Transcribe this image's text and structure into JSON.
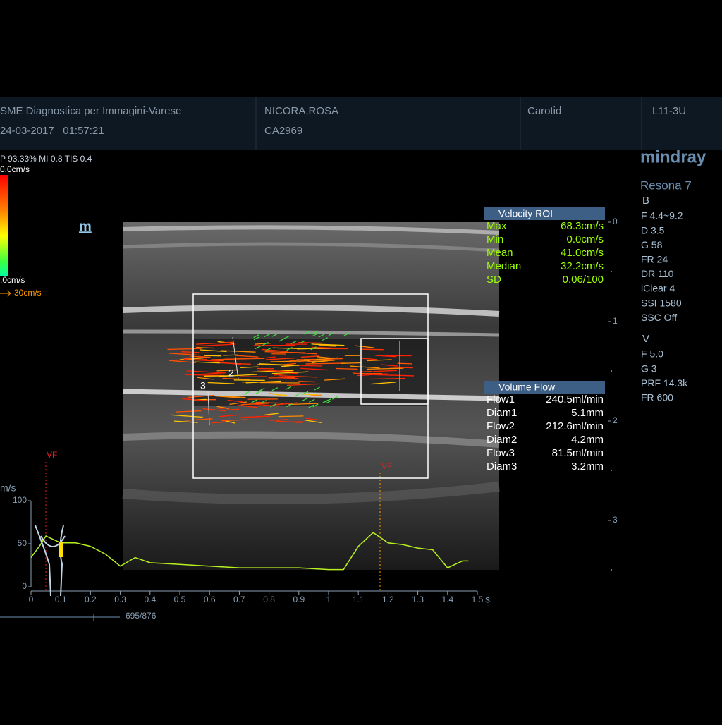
{
  "header": {
    "institution": "SME Diagnostica per Immagini-Varese",
    "datetime": "24-03-2017   01:57:21",
    "patient_name": "NICORA,ROSA",
    "patient_id": "CA2969",
    "exam": "Carotid",
    "probe": "L11-3U"
  },
  "status_line": "P 93.33%  MI 0.8 TIS 0.4",
  "color_scale": {
    "top": "0.0cm/s",
    "bottom": ".0cm/s",
    "arrow_scale": "30cm/s"
  },
  "m_icon": "m",
  "logo": "mindray",
  "model": "Resona 7",
  "b_params": {
    "title": "B",
    "items": [
      "F 4.4~9.2",
      "D 3.5",
      "G 58",
      "FR 24",
      "DR 110",
      "iClear 4",
      "SSI 1580",
      "SSC Off"
    ]
  },
  "v_params": {
    "title": "V",
    "items": [
      "F 5.0",
      "G 3",
      "PRF 14.3k",
      "FR 600"
    ]
  },
  "velocity_roi": {
    "title": "Velocity ROI",
    "rows": [
      [
        "Max",
        "68.3cm/s"
      ],
      [
        "Min",
        "0.0cm/s"
      ],
      [
        "Mean",
        "41.0cm/s"
      ],
      [
        "Median",
        "32.2cm/s"
      ],
      [
        "SD",
        "0.06/100"
      ]
    ]
  },
  "volume_flow": {
    "title": "Volume Flow",
    "rows": [
      [
        "Flow1",
        "240.5ml/min"
      ],
      [
        "Diam1",
        "5.1mm"
      ],
      [
        "Flow2",
        "212.6ml/min"
      ],
      [
        "Diam2",
        "4.2mm"
      ],
      [
        "Flow3",
        "81.5ml/min"
      ],
      [
        "Diam3",
        "3.2mm"
      ]
    ]
  },
  "depth_ticks": [
    0,
    1,
    2,
    3
  ],
  "image_labels": {
    "line2": "2",
    "line3": "3",
    "vf": "VF",
    "vf_prime": "VF'"
  },
  "waveform": {
    "type": "line",
    "y_unit": "m/s",
    "x_unit": "s",
    "color": "#b8f020",
    "xlim": [
      0,
      1.5
    ],
    "ylim": [
      0,
      100
    ],
    "xticks": [
      0,
      0.1,
      0.2,
      0.3,
      0.4,
      0.5,
      0.6,
      0.7,
      0.8,
      0.9,
      1,
      1.1,
      1.2,
      1.3,
      1.4,
      1.5
    ],
    "yticks": [
      0,
      50,
      100
    ],
    "x": [
      0,
      0.03,
      0.05,
      0.1,
      0.15,
      0.2,
      0.25,
      0.3,
      0.35,
      0.4,
      0.5,
      0.6,
      0.7,
      0.8,
      0.9,
      1.0,
      1.05,
      1.1,
      1.15,
      1.2,
      1.25,
      1.3,
      1.35,
      1.4,
      1.45,
      1.47
    ],
    "values": [
      34,
      48,
      59,
      51,
      51,
      47,
      38,
      24,
      34,
      28,
      26,
      24,
      22,
      22,
      22,
      20,
      20,
      47,
      63,
      51,
      49,
      45,
      43,
      22,
      30,
      30
    ]
  },
  "cine": {
    "frame": "695/876"
  }
}
